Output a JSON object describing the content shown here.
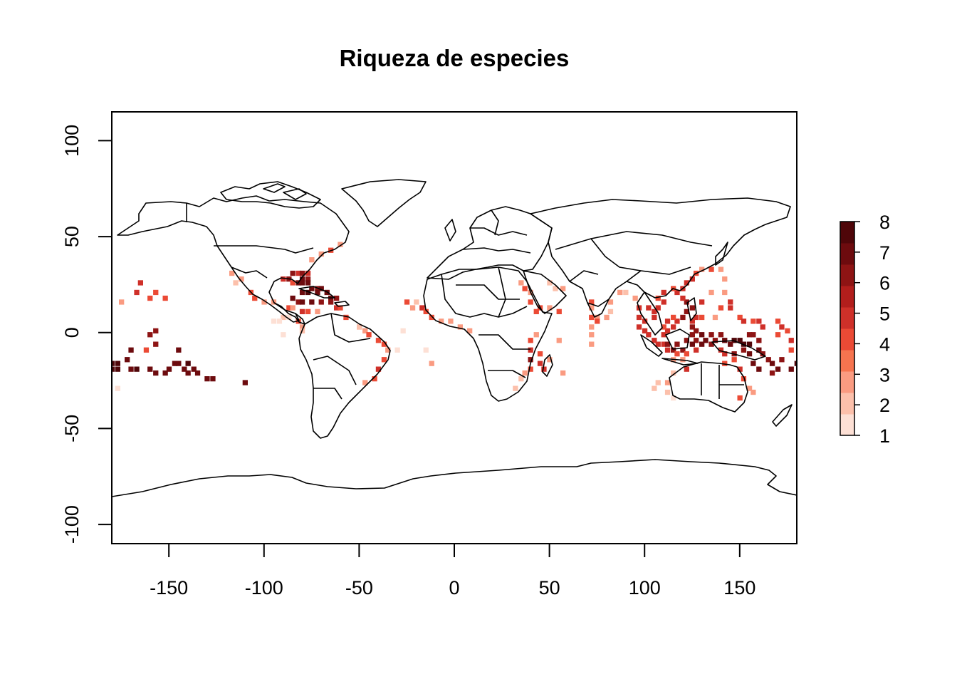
{
  "title": "Riqueza de especies",
  "x_ticks": [
    -150,
    -100,
    -50,
    0,
    50,
    100,
    150
  ],
  "y_ticks": [
    100,
    50,
    0,
    -50,
    -100
  ],
  "legend": {
    "min": 1,
    "max": 8,
    "labels": [
      1,
      2,
      3,
      4,
      5,
      6,
      7,
      8
    ],
    "colors": [
      "#FDE0D5",
      "#FCC0AB",
      "#FA9B81",
      "#F6744F",
      "#EB4A35",
      "#CF3029",
      "#B21E1C",
      "#8E1414",
      "#6D0B0E",
      "#4F0609"
    ]
  },
  "chart_data": {
    "type": "heatmap",
    "title": "Riqueza de especies",
    "xlim": [
      -180,
      180
    ],
    "ylim": [
      -110,
      115
    ],
    "x_ticks": [
      -150,
      -100,
      -50,
      0,
      50,
      100,
      150
    ],
    "y_ticks": [
      -100,
      -50,
      0,
      50,
      100
    ],
    "value_range": [
      1,
      8
    ],
    "basemap": "world country borders",
    "cell_size_deg": 2.5,
    "cells": [
      [
        -85,
        31,
        6
      ],
      [
        -82,
        31,
        5
      ],
      [
        -80,
        31,
        6
      ],
      [
        -77,
        31,
        5
      ],
      [
        -90,
        28,
        5
      ],
      [
        -87,
        28,
        6
      ],
      [
        -80,
        28,
        7
      ],
      [
        -77,
        28,
        6
      ],
      [
        -85,
        26,
        4
      ],
      [
        -82,
        26,
        7
      ],
      [
        -80,
        26,
        7
      ],
      [
        -77,
        26,
        7
      ],
      [
        -75,
        23,
        7
      ],
      [
        -72,
        23,
        6
      ],
      [
        -70,
        23,
        7
      ],
      [
        -80,
        21,
        7
      ],
      [
        -77,
        21,
        8
      ],
      [
        -72,
        21,
        7
      ],
      [
        -67,
        21,
        7
      ],
      [
        -65,
        18,
        7
      ],
      [
        -62,
        18,
        6
      ],
      [
        -85,
        18,
        7
      ],
      [
        -82,
        16,
        6
      ],
      [
        -80,
        16,
        7
      ],
      [
        -75,
        16,
        7
      ],
      [
        -70,
        16,
        6
      ],
      [
        -65,
        16,
        6
      ],
      [
        -62,
        13,
        5
      ],
      [
        -60,
        13,
        4
      ],
      [
        -87,
        13,
        4
      ],
      [
        -85,
        13,
        3
      ],
      [
        -80,
        11,
        5
      ],
      [
        -77,
        11,
        4
      ],
      [
        -72,
        11,
        3
      ],
      [
        -90,
        8,
        2
      ],
      [
        -87,
        8,
        1
      ],
      [
        -95,
        6,
        1
      ],
      [
        -92,
        6,
        1
      ],
      [
        -82,
        6,
        4
      ],
      [
        -80,
        3,
        3
      ],
      [
        -80,
        1,
        2
      ],
      [
        -90,
        -1,
        1
      ],
      [
        -57,
        8,
        4
      ],
      [
        -50,
        3,
        3
      ],
      [
        -47,
        1,
        3
      ],
      [
        -45,
        -1,
        4
      ],
      [
        -40,
        -4,
        4
      ],
      [
        -37,
        -6,
        4
      ],
      [
        -35,
        -9,
        3
      ],
      [
        -37,
        -14,
        4
      ],
      [
        -40,
        -19,
        5
      ],
      [
        -42,
        -24,
        4
      ],
      [
        -47,
        -26,
        3
      ],
      [
        -115,
        26,
        2
      ],
      [
        -117,
        31,
        3
      ],
      [
        -112,
        28,
        3
      ],
      [
        -107,
        21,
        4
      ],
      [
        -105,
        18,
        4
      ],
      [
        -100,
        16,
        3
      ],
      [
        -95,
        16,
        3
      ],
      [
        -70,
        41,
        3
      ],
      [
        -65,
        43,
        4
      ],
      [
        -75,
        38,
        3
      ],
      [
        -60,
        46,
        3
      ],
      [
        -180,
        -16,
        8
      ],
      [
        -177,
        -16,
        8
      ],
      [
        -180,
        -19,
        8
      ],
      [
        -177,
        -19,
        8
      ],
      [
        -172,
        -14,
        7
      ],
      [
        -170,
        -9,
        7
      ],
      [
        -170,
        -19,
        7
      ],
      [
        -167,
        -19,
        8
      ],
      [
        -160,
        -19,
        7
      ],
      [
        -157,
        -21,
        7
      ],
      [
        -152,
        -21,
        7
      ],
      [
        -150,
        -19,
        7
      ],
      [
        -147,
        -16,
        7
      ],
      [
        -145,
        -16,
        7
      ],
      [
        -142,
        -19,
        7
      ],
      [
        -140,
        -16,
        8
      ],
      [
        -140,
        -21,
        7
      ],
      [
        -137,
        -19,
        7
      ],
      [
        -135,
        -21,
        7
      ],
      [
        -130,
        -24,
        7
      ],
      [
        -127,
        -24,
        7
      ],
      [
        -110,
        -26,
        7
      ],
      [
        -145,
        -9,
        7
      ],
      [
        -157,
        -6,
        6
      ],
      [
        -160,
        -1,
        6
      ],
      [
        -157,
        1,
        6
      ],
      [
        -162,
        -9,
        4
      ],
      [
        -167,
        21,
        5
      ],
      [
        -160,
        18,
        4
      ],
      [
        -157,
        21,
        4
      ],
      [
        -152,
        18,
        4
      ],
      [
        -175,
        16,
        3
      ],
      [
        -165,
        26,
        5
      ],
      [
        -177,
        -29,
        1
      ],
      [
        -182,
        -16,
        8
      ],
      [
        -30,
        -9,
        1
      ],
      [
        -15,
        -9,
        1
      ],
      [
        -12,
        -16,
        3
      ],
      [
        -25,
        16,
        4
      ],
      [
        -22,
        13,
        3
      ],
      [
        -20,
        16,
        2
      ],
      [
        -17,
        13,
        5
      ],
      [
        -15,
        11,
        4
      ],
      [
        -12,
        8,
        4
      ],
      [
        -7,
        6,
        3
      ],
      [
        -2,
        6,
        3
      ],
      [
        3,
        3,
        3
      ],
      [
        8,
        1,
        3
      ],
      [
        -27,
        1,
        1
      ],
      [
        -50,
        3,
        2
      ],
      [
        43,
        11,
        4
      ],
      [
        40,
        16,
        4
      ],
      [
        40,
        21,
        3
      ],
      [
        37,
        23,
        4
      ],
      [
        35,
        26,
        3
      ],
      [
        45,
        13,
        4
      ],
      [
        50,
        13,
        3
      ],
      [
        43,
        -1,
        3
      ],
      [
        40,
        -4,
        4
      ],
      [
        40,
        -9,
        5
      ],
      [
        40,
        -14,
        6
      ],
      [
        40,
        -19,
        4
      ],
      [
        37,
        -21,
        3
      ],
      [
        35,
        -24,
        2
      ],
      [
        32,
        -29,
        2
      ],
      [
        45,
        -16,
        5
      ],
      [
        47,
        -19,
        5
      ],
      [
        50,
        -14,
        3
      ],
      [
        55,
        -4,
        3
      ],
      [
        57,
        -21,
        3
      ],
      [
        45,
        -11,
        4
      ],
      [
        50,
        26,
        2
      ],
      [
        53,
        23,
        2
      ],
      [
        57,
        23,
        3
      ],
      [
        55,
        11,
        4
      ],
      [
        72,
        16,
        4
      ],
      [
        72,
        13,
        3
      ],
      [
        72,
        8,
        4
      ],
      [
        75,
        8,
        3
      ],
      [
        75,
        6,
        4
      ],
      [
        72,
        3,
        3
      ],
      [
        72,
        -1,
        3
      ],
      [
        72,
        -6,
        3
      ],
      [
        80,
        8,
        3
      ],
      [
        82,
        11,
        2
      ],
      [
        82,
        16,
        3
      ],
      [
        87,
        21,
        3
      ],
      [
        90,
        21,
        2
      ],
      [
        95,
        18,
        3
      ],
      [
        97,
        13,
        5
      ],
      [
        97,
        8,
        5
      ],
      [
        100,
        6,
        5
      ],
      [
        97,
        3,
        5
      ],
      [
        100,
        1,
        5
      ],
      [
        102,
        -1,
        5
      ],
      [
        105,
        -4,
        5
      ],
      [
        107,
        -6,
        5
      ],
      [
        110,
        -6,
        5
      ],
      [
        112,
        -6,
        6
      ],
      [
        115,
        -9,
        6
      ],
      [
        120,
        -9,
        6
      ],
      [
        117,
        -6,
        6
      ],
      [
        122,
        -4,
        6
      ],
      [
        125,
        -1,
        6
      ],
      [
        127,
        1,
        6
      ],
      [
        130,
        -1,
        7
      ],
      [
        127,
        -4,
        6
      ],
      [
        125,
        -6,
        7
      ],
      [
        127,
        -9,
        5
      ],
      [
        122,
        -11,
        4
      ],
      [
        117,
        -11,
        4
      ],
      [
        112,
        -9,
        5
      ],
      [
        110,
        -1,
        5
      ],
      [
        112,
        1,
        5
      ],
      [
        115,
        3,
        5
      ],
      [
        117,
        6,
        5
      ],
      [
        120,
        8,
        6
      ],
      [
        122,
        11,
        6
      ],
      [
        125,
        13,
        6
      ],
      [
        122,
        16,
        6
      ],
      [
        120,
        18,
        5
      ],
      [
        117,
        21,
        5
      ],
      [
        115,
        23,
        4
      ],
      [
        120,
        23,
        5
      ],
      [
        122,
        26,
        5
      ],
      [
        125,
        28,
        5
      ],
      [
        127,
        31,
        4
      ],
      [
        130,
        33,
        3
      ],
      [
        135,
        33,
        4
      ],
      [
        140,
        33,
        3
      ],
      [
        142,
        28,
        3
      ],
      [
        145,
        16,
        5
      ],
      [
        145,
        13,
        5
      ],
      [
        150,
        8,
        4
      ],
      [
        152,
        6,
        5
      ],
      [
        157,
        6,
        4
      ],
      [
        160,
        6,
        5
      ],
      [
        162,
        3,
        5
      ],
      [
        157,
        -1,
        6
      ],
      [
        160,
        -4,
        6
      ],
      [
        155,
        -6,
        8
      ],
      [
        152,
        -6,
        8
      ],
      [
        150,
        -4,
        8
      ],
      [
        147,
        -4,
        8
      ],
      [
        145,
        -6,
        7
      ],
      [
        142,
        -4,
        7
      ],
      [
        140,
        -1,
        6
      ],
      [
        137,
        -4,
        6
      ],
      [
        135,
        -1,
        6
      ],
      [
        132,
        -4,
        7
      ],
      [
        130,
        -6,
        7
      ],
      [
        135,
        -6,
        6
      ],
      [
        140,
        -9,
        5
      ],
      [
        142,
        -11,
        5
      ],
      [
        147,
        -11,
        6
      ],
      [
        152,
        -9,
        6
      ],
      [
        155,
        -11,
        7
      ],
      [
        160,
        -9,
        7
      ],
      [
        162,
        -11,
        6
      ],
      [
        165,
        -14,
        6
      ],
      [
        167,
        -16,
        7
      ],
      [
        170,
        -19,
        7
      ],
      [
        167,
        -21,
        6
      ],
      [
        157,
        -16,
        7
      ],
      [
        160,
        -19,
        7
      ],
      [
        150,
        -19,
        5
      ],
      [
        147,
        -14,
        4
      ],
      [
        142,
        -16,
        4
      ],
      [
        122,
        -19,
        5
      ],
      [
        120,
        -14,
        3
      ],
      [
        115,
        -21,
        2
      ],
      [
        112,
        -26,
        3
      ],
      [
        107,
        -26,
        2
      ],
      [
        102,
        13,
        5
      ],
      [
        105,
        11,
        5
      ],
      [
        107,
        13,
        5
      ],
      [
        110,
        16,
        5
      ],
      [
        107,
        18,
        4
      ],
      [
        110,
        21,
        5
      ],
      [
        105,
        8,
        5
      ],
      [
        110,
        3,
        4
      ],
      [
        112,
        6,
        5
      ],
      [
        115,
        8,
        4
      ],
      [
        125,
        6,
        5
      ],
      [
        127,
        8,
        5
      ],
      [
        125,
        3,
        6
      ],
      [
        130,
        8,
        4
      ],
      [
        137,
        8,
        3
      ],
      [
        140,
        13,
        4
      ],
      [
        155,
        -1,
        6
      ],
      [
        170,
        -1,
        4
      ],
      [
        172,
        3,
        5
      ],
      [
        170,
        6,
        4
      ],
      [
        175,
        1,
        4
      ],
      [
        177,
        -4,
        5
      ],
      [
        177,
        -9,
        4
      ],
      [
        180,
        -16,
        8
      ],
      [
        177,
        -19,
        7
      ],
      [
        172,
        -14,
        6
      ],
      [
        115,
        -14,
        3
      ],
      [
        105,
        -29,
        2
      ],
      [
        112,
        -31,
        2
      ],
      [
        115,
        -34,
        1
      ],
      [
        150,
        -34,
        4
      ],
      [
        155,
        -29,
        3
      ],
      [
        152,
        -24,
        4
      ],
      [
        157,
        -31,
        3
      ],
      [
        142,
        21,
        3
      ],
      [
        135,
        21,
        3
      ],
      [
        130,
        16,
        5
      ]
    ]
  }
}
